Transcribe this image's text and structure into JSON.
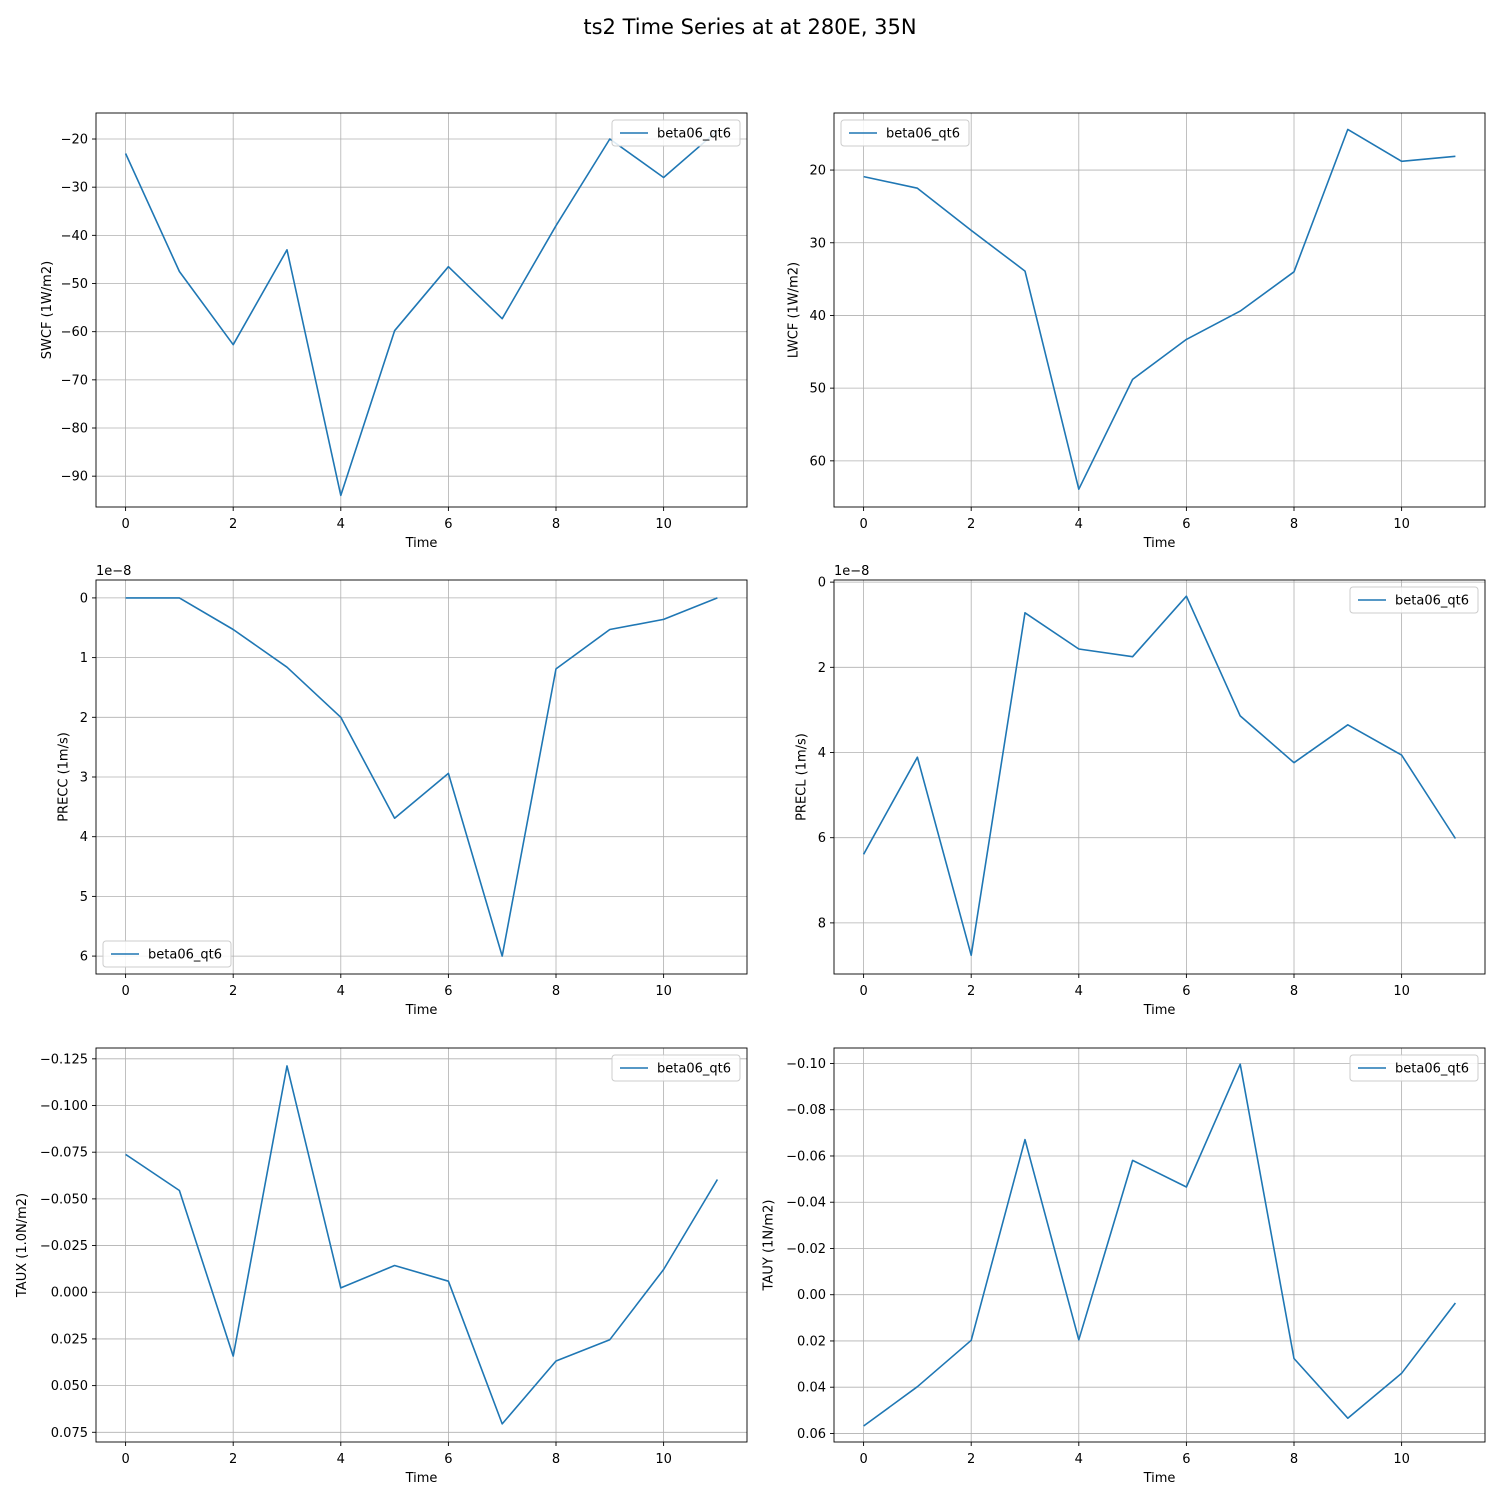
{
  "figure": {
    "title": "ts2 Time Series at at 280E, 35N"
  },
  "colors": {
    "line": "#1f77b4",
    "grid": "#b0b0b0",
    "axis": "#000000",
    "legend_border": "#cccccc"
  },
  "chart_data": [
    {
      "type": "line",
      "xlabel": "Time",
      "ylabel": "SWCF (1W/m2)",
      "y_inverted": true,
      "xlim": [
        -0.55,
        11.55
      ],
      "ylim": [
        -96.4,
        -14.6
      ],
      "xticks": [
        0,
        2,
        4,
        6,
        8,
        10
      ],
      "xtick_labels": [
        "0",
        "2",
        "4",
        "6",
        "8",
        "10"
      ],
      "yticks": [
        -90,
        -80,
        -70,
        -60,
        -50,
        -40,
        -30,
        -20
      ],
      "ytick_labels": [
        "−90",
        "−80",
        "−70",
        "−60",
        "−50",
        "−40",
        "−30",
        "−20"
      ],
      "offset_text": "",
      "legend_loc": "upper right",
      "grid": true,
      "series": [
        {
          "name": "beta06_qt6",
          "x": [
            0,
            1,
            2,
            3,
            4,
            5,
            6,
            7,
            8,
            9,
            10,
            11
          ],
          "y": [
            -23.0,
            -47.5,
            -62.7,
            -43.0,
            -94.0,
            -59.8,
            -46.5,
            -57.3,
            -38.0,
            -20.0,
            -28.0,
            -18.3
          ]
        }
      ]
    },
    {
      "type": "line",
      "xlabel": "Time",
      "ylabel": "LWCF (1W/m2)",
      "y_inverted": true,
      "xlim": [
        -0.55,
        11.55
      ],
      "ylim": [
        66.35,
        12.15
      ],
      "xticks": [
        0,
        2,
        4,
        6,
        8,
        10
      ],
      "xtick_labels": [
        "0",
        "2",
        "4",
        "6",
        "8",
        "10"
      ],
      "yticks": [
        20,
        30,
        40,
        50,
        60
      ],
      "ytick_labels": [
        "20",
        "30",
        "40",
        "50",
        "60"
      ],
      "offset_text": "",
      "legend_loc": "upper left",
      "grid": true,
      "series": [
        {
          "name": "beta06_qt6",
          "x": [
            0,
            1,
            2,
            3,
            4,
            5,
            6,
            7,
            8,
            9,
            10,
            11
          ],
          "y": [
            20.9,
            22.5,
            28.3,
            33.9,
            63.9,
            48.8,
            43.3,
            39.4,
            34.0,
            14.4,
            18.8,
            18.1
          ]
        }
      ]
    },
    {
      "type": "line",
      "xlabel": "Time",
      "ylabel": "PRECC (1m/s)",
      "y_inverted": true,
      "xlim": [
        -0.55,
        11.55
      ],
      "ylim": [
        6.3,
        -0.3
      ],
      "xticks": [
        0,
        2,
        4,
        6,
        8,
        10
      ],
      "xtick_labels": [
        "0",
        "2",
        "4",
        "6",
        "8",
        "10"
      ],
      "yticks": [
        0,
        1,
        2,
        3,
        4,
        5,
        6
      ],
      "ytick_labels": [
        "0",
        "1",
        "2",
        "3",
        "4",
        "5",
        "6"
      ],
      "offset_text": "1e−8",
      "legend_loc": "lower left",
      "grid": true,
      "series": [
        {
          "name": "beta06_qt6",
          "x": [
            0,
            1,
            2,
            3,
            4,
            5,
            6,
            7,
            8,
            9,
            10,
            11
          ],
          "y": [
            0.0,
            0.0,
            0.53,
            1.16,
            2.0,
            3.69,
            2.94,
            6.0,
            1.19,
            0.53,
            0.36,
            0.0
          ]
        }
      ]
    },
    {
      "type": "line",
      "xlabel": "Time",
      "ylabel": "PRECL (1m/s)",
      "y_inverted": true,
      "xlim": [
        -0.55,
        11.55
      ],
      "ylim": [
        9.2,
        -0.05
      ],
      "xticks": [
        0,
        2,
        4,
        6,
        8,
        10
      ],
      "xtick_labels": [
        "0",
        "2",
        "4",
        "6",
        "8",
        "10"
      ],
      "yticks": [
        0,
        2,
        4,
        6,
        8
      ],
      "ytick_labels": [
        "0",
        "2",
        "4",
        "6",
        "8"
      ],
      "offset_text": "1e−8",
      "legend_loc": "upper right",
      "grid": true,
      "series": [
        {
          "name": "beta06_qt6",
          "x": [
            0,
            1,
            2,
            3,
            4,
            5,
            6,
            7,
            8,
            9,
            10,
            11
          ],
          "y": [
            6.39,
            4.11,
            8.76,
            0.72,
            1.57,
            1.75,
            0.33,
            3.14,
            4.24,
            3.35,
            4.06,
            6.02
          ]
        }
      ]
    },
    {
      "type": "line",
      "xlabel": "Time",
      "ylabel": "TAUX (1.0N/m2)",
      "y_inverted": true,
      "xlim": [
        -0.55,
        11.55
      ],
      "ylim": [
        0.0802,
        -0.1308
      ],
      "xticks": [
        0,
        2,
        4,
        6,
        8,
        10
      ],
      "xtick_labels": [
        "0",
        "2",
        "4",
        "6",
        "8",
        "10"
      ],
      "yticks": [
        -0.125,
        -0.1,
        -0.075,
        -0.05,
        -0.025,
        0.0,
        0.025,
        0.05,
        0.075
      ],
      "ytick_labels": [
        "−0.125",
        "−0.100",
        "−0.075",
        "−0.050",
        "−0.025",
        "0.000",
        "0.025",
        "0.050",
        "0.075"
      ],
      "offset_text": "",
      "legend_loc": "upper right",
      "grid": true,
      "series": [
        {
          "name": "beta06_qt6",
          "x": [
            0,
            1,
            2,
            3,
            4,
            5,
            6,
            7,
            8,
            9,
            10,
            11
          ],
          "y": [
            -0.0738,
            -0.0545,
            0.0342,
            -0.1212,
            -0.0023,
            -0.0143,
            -0.0059,
            0.0705,
            0.0368,
            0.0254,
            -0.0122,
            -0.0604
          ]
        }
      ]
    },
    {
      "type": "line",
      "xlabel": "Time",
      "ylabel": "TAUY (1N/m2)",
      "y_inverted": true,
      "xlim": [
        -0.55,
        11.55
      ],
      "ylim": [
        0.0637,
        -0.1067
      ],
      "xticks": [
        0,
        2,
        4,
        6,
        8,
        10
      ],
      "xtick_labels": [
        "0",
        "2",
        "4",
        "6",
        "8",
        "10"
      ],
      "yticks": [
        -0.1,
        -0.08,
        -0.06,
        -0.04,
        -0.02,
        0.0,
        0.02,
        0.04,
        0.06
      ],
      "ytick_labels": [
        "−0.10",
        "−0.08",
        "−0.06",
        "−0.04",
        "−0.02",
        "0.00",
        "0.02",
        "0.04",
        "0.06"
      ],
      "offset_text": "",
      "legend_loc": "upper right",
      "grid": true,
      "series": [
        {
          "name": "beta06_qt6",
          "x": [
            0,
            1,
            2,
            3,
            4,
            5,
            6,
            7,
            8,
            9,
            10,
            11
          ],
          "y": [
            0.0568,
            0.0398,
            0.0197,
            -0.0671,
            0.0195,
            -0.0581,
            -0.0466,
            -0.0997,
            0.0276,
            0.0534,
            0.034,
            0.0036
          ]
        }
      ]
    }
  ]
}
